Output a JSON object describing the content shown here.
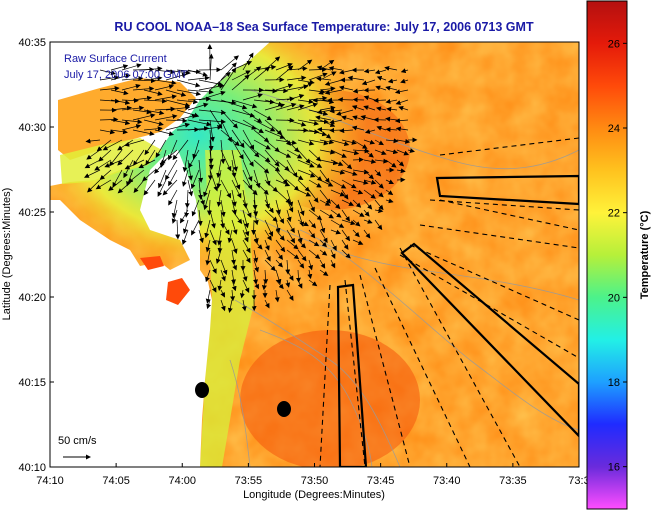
{
  "chart_data": {
    "type": "heatmap",
    "title": "RU COOL  NOAA–18  Sea Surface Temperature:  July 17, 2006 0713 GMT",
    "xlabel": "Longitude (Degrees:Minutes)",
    "ylabel": "Latitude (Degrees:Minutes)",
    "x_ticks": [
      "74:10",
      "74:05",
      "74:00",
      "73:55",
      "73:50",
      "73:45",
      "73:40",
      "73:35",
      "73:3"
    ],
    "y_ticks": [
      "40:35",
      "40:30",
      "40:25",
      "40:20",
      "40:15",
      "40:10"
    ],
    "xlim": [
      "74:10",
      "73:30"
    ],
    "ylim": [
      "40:10",
      "40:35"
    ],
    "annotations": [
      "Raw Surface Current",
      "July 17, 2006 07:00 GMT"
    ],
    "vector_scale_label": "50 cm/s",
    "colorbar": {
      "label": "Temperature (°C)",
      "ticks": [
        "26",
        "24",
        "22",
        "20",
        "18",
        "16"
      ],
      "range": [
        15,
        27
      ],
      "colors": [
        "#ff4dff",
        "#6a2bdc",
        "#1f2bff",
        "#1ea0ff",
        "#22f0e6",
        "#4cf28a",
        "#b6f03a",
        "#fff23a",
        "#ffc21e",
        "#ff8a12",
        "#ff4a0a",
        "#e41a0a",
        "#b41010"
      ]
    },
    "grid": false,
    "legend": "none"
  }
}
